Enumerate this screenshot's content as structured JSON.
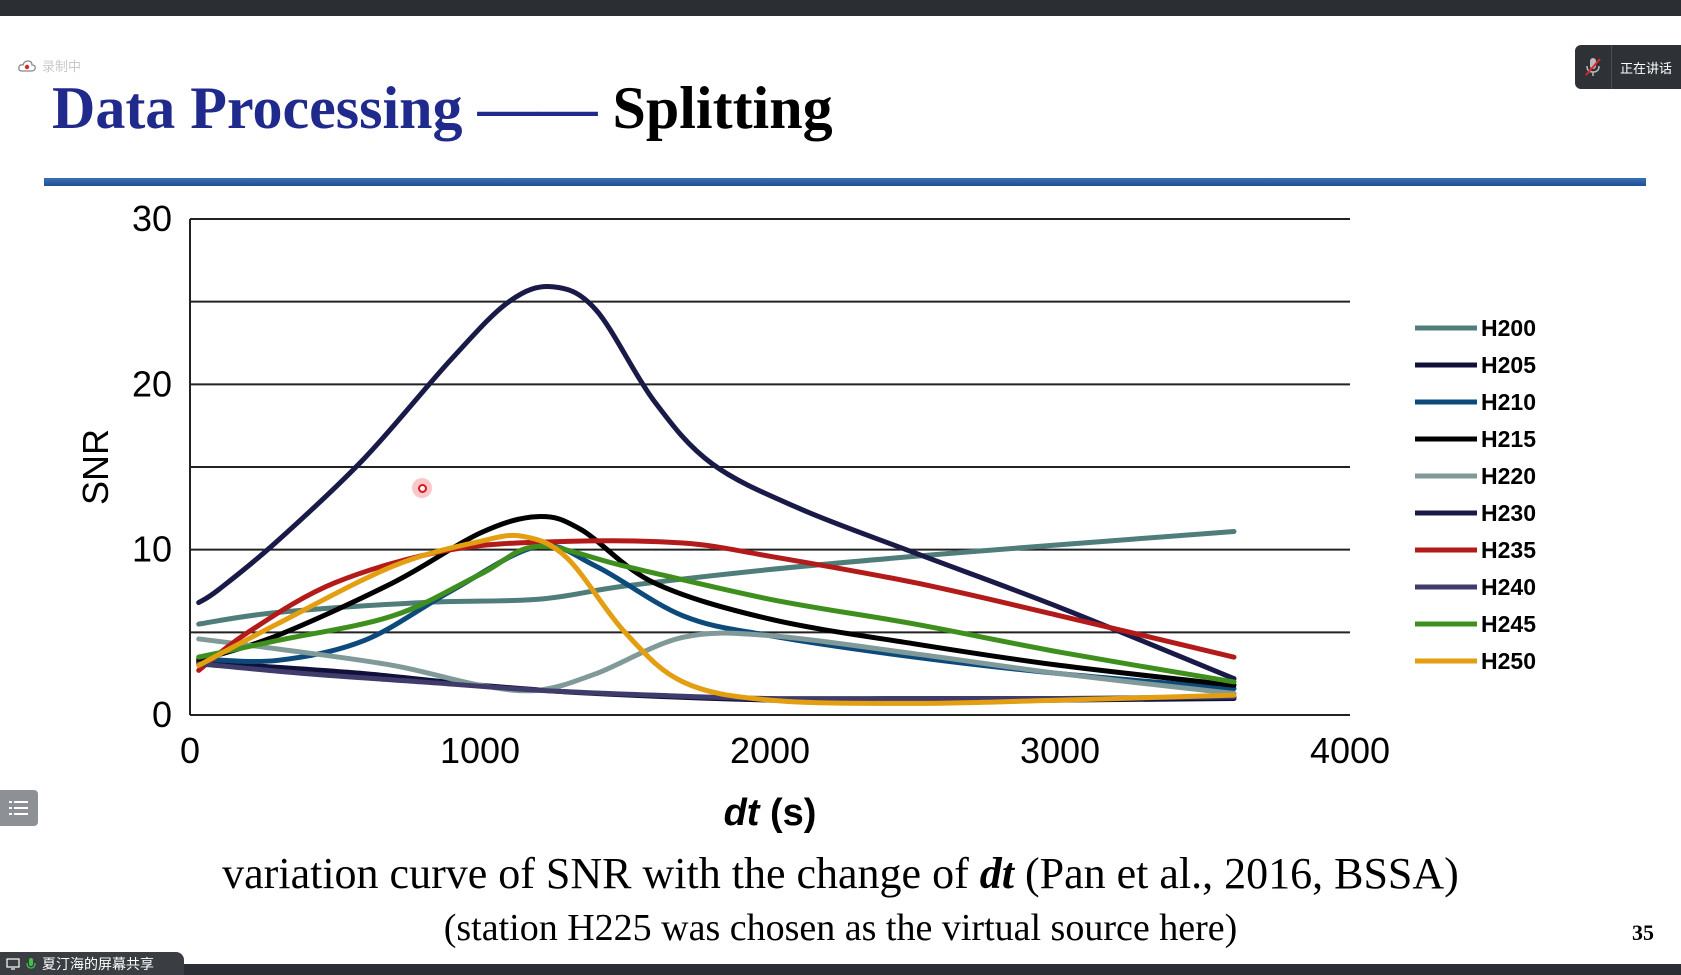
{
  "recording_label": "录制中",
  "speaking_label": "正在讲话",
  "slide": {
    "title_part1": "Data Processing",
    "title_dash": "——",
    "title_part2": "Splitting",
    "caption_pre": "variation curve of SNR with the change of ",
    "caption_dt": "dt",
    "caption_post": " (Pan et al., 2016, BSSA)",
    "caption_line2": "(station H225 was chosen as the virtual source here)",
    "page_number": "35"
  },
  "share_label": "夏汀海的屏幕共享",
  "chart_data": {
    "type": "line",
    "xlabel_italic": "dt",
    "xlabel_unit": "(s)",
    "ylabel": "SNR",
    "xlim": [
      0,
      4000
    ],
    "ylim": [
      0,
      30
    ],
    "x_ticks": [
      "0",
      "1000",
      "2000",
      "3000",
      "4000"
    ],
    "y_ticks": [
      "0",
      "10",
      "20",
      "30"
    ],
    "grid": true,
    "legend_position": "right",
    "series": [
      {
        "name": "H200",
        "color": "#4f7d7a",
        "points": [
          [
            30,
            5.5
          ],
          [
            300,
            6.2
          ],
          [
            800,
            6.8
          ],
          [
            1200,
            7.0
          ],
          [
            1500,
            7.8
          ],
          [
            2000,
            8.8
          ],
          [
            2500,
            9.6
          ],
          [
            3000,
            10.3
          ],
          [
            3600,
            11.1
          ]
        ]
      },
      {
        "name": "H205",
        "color": "#10103a",
        "points": [
          [
            30,
            3.2
          ],
          [
            200,
            3.0
          ],
          [
            600,
            2.5
          ],
          [
            1000,
            1.8
          ],
          [
            1400,
            1.3
          ],
          [
            2000,
            0.9
          ],
          [
            2500,
            0.8
          ],
          [
            3000,
            0.9
          ],
          [
            3600,
            1.0
          ]
        ]
      },
      {
        "name": "H210",
        "color": "#0d4a7c",
        "points": [
          [
            30,
            3.4
          ],
          [
            300,
            3.3
          ],
          [
            600,
            4.5
          ],
          [
            900,
            7.5
          ],
          [
            1200,
            10.2
          ],
          [
            1400,
            9.0
          ],
          [
            1700,
            6.0
          ],
          [
            2000,
            4.8
          ],
          [
            2500,
            3.5
          ],
          [
            3000,
            2.5
          ],
          [
            3600,
            1.6
          ]
        ]
      },
      {
        "name": "H215",
        "color": "#000000",
        "points": [
          [
            30,
            3.3
          ],
          [
            300,
            4.8
          ],
          [
            700,
            8.0
          ],
          [
            1000,
            11.0
          ],
          [
            1200,
            12.0
          ],
          [
            1350,
            11.2
          ],
          [
            1600,
            8.0
          ],
          [
            2000,
            5.8
          ],
          [
            2500,
            4.3
          ],
          [
            3000,
            3.0
          ],
          [
            3600,
            1.8
          ]
        ]
      },
      {
        "name": "H220",
        "color": "#7f9a98",
        "points": [
          [
            30,
            4.6
          ],
          [
            300,
            4.0
          ],
          [
            700,
            3.0
          ],
          [
            1000,
            1.8
          ],
          [
            1200,
            1.5
          ],
          [
            1400,
            2.5
          ],
          [
            1700,
            4.7
          ],
          [
            2000,
            4.8
          ],
          [
            2500,
            3.7
          ],
          [
            3000,
            2.5
          ],
          [
            3600,
            1.3
          ]
        ]
      },
      {
        "name": "H230",
        "color": "#1a1a48",
        "points": [
          [
            30,
            6.8
          ],
          [
            100,
            7.6
          ],
          [
            300,
            10.5
          ],
          [
            600,
            15.5
          ],
          [
            900,
            21.5
          ],
          [
            1100,
            25.0
          ],
          [
            1250,
            25.9
          ],
          [
            1400,
            24.5
          ],
          [
            1600,
            19.0
          ],
          [
            1800,
            15.2
          ],
          [
            2100,
            12.5
          ],
          [
            2500,
            9.8
          ],
          [
            3000,
            6.5
          ],
          [
            3600,
            2.2
          ]
        ]
      },
      {
        "name": "H235",
        "color": "#b31b1b",
        "points": [
          [
            30,
            2.7
          ],
          [
            200,
            5.0
          ],
          [
            500,
            8.0
          ],
          [
            900,
            10.0
          ],
          [
            1300,
            10.5
          ],
          [
            1700,
            10.4
          ],
          [
            2000,
            9.6
          ],
          [
            2500,
            8.0
          ],
          [
            3000,
            6.0
          ],
          [
            3600,
            3.5
          ]
        ]
      },
      {
        "name": "H240",
        "color": "#3f3b6b",
        "points": [
          [
            30,
            3.1
          ],
          [
            400,
            2.5
          ],
          [
            800,
            2.0
          ],
          [
            1200,
            1.5
          ],
          [
            1600,
            1.2
          ],
          [
            2000,
            1.0
          ],
          [
            2500,
            1.0
          ],
          [
            3000,
            1.0
          ],
          [
            3600,
            1.1
          ]
        ]
      },
      {
        "name": "H245",
        "color": "#3f8f1f",
        "points": [
          [
            30,
            3.5
          ],
          [
            300,
            4.5
          ],
          [
            700,
            6.0
          ],
          [
            1000,
            8.5
          ],
          [
            1200,
            10.2
          ],
          [
            1500,
            9.0
          ],
          [
            2000,
            7.0
          ],
          [
            2500,
            5.5
          ],
          [
            3000,
            3.8
          ],
          [
            3600,
            2.0
          ]
        ]
      },
      {
        "name": "H250",
        "color": "#e39e12",
        "points": [
          [
            30,
            3.0
          ],
          [
            300,
            5.5
          ],
          [
            700,
            9.0
          ],
          [
            1000,
            10.5
          ],
          [
            1150,
            10.8
          ],
          [
            1300,
            9.5
          ],
          [
            1500,
            5.0
          ],
          [
            1700,
            2.0
          ],
          [
            2000,
            0.9
          ],
          [
            2500,
            0.7
          ],
          [
            3000,
            0.9
          ],
          [
            3600,
            1.2
          ]
        ]
      }
    ]
  }
}
